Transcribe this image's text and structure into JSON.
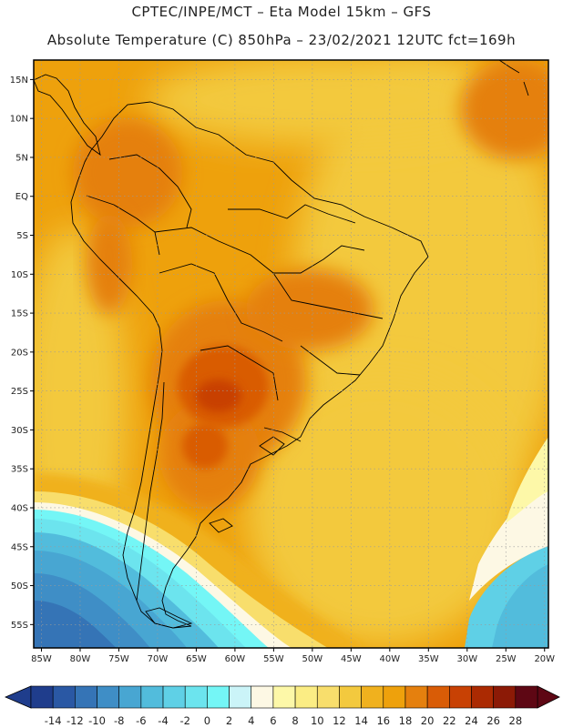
{
  "header": {
    "line1": "CPTEC/INPE/MCT –  Eta Model 15km – GFS",
    "line2": "Absolute Temperature (C) 850hPa – 23/02/2021 12UTC fct=169h"
  },
  "axes": {
    "lat_labels": [
      "15N",
      "10N",
      "5N",
      "EQ",
      "5S",
      "10S",
      "15S",
      "20S",
      "25S",
      "30S",
      "35S",
      "40S",
      "45S",
      "50S",
      "55S"
    ],
    "lat_values": [
      15,
      10,
      5,
      0,
      -5,
      -10,
      -15,
      -20,
      -25,
      -30,
      -35,
      -40,
      -45,
      -50,
      -55
    ],
    "lon_labels": [
      "85W",
      "80W",
      "75W",
      "70W",
      "65W",
      "60W",
      "55W",
      "50W",
      "45W",
      "40W",
      "35W",
      "30W",
      "25W",
      "20W"
    ],
    "lon_values": [
      -85,
      -80,
      -75,
      -70,
      -65,
      -60,
      -55,
      -50,
      -45,
      -40,
      -35,
      -30,
      -25,
      -20
    ],
    "lat_range": [
      -58,
      17.5
    ],
    "lon_range": [
      -86,
      -19.5
    ],
    "grid": "dotted"
  },
  "colorbar": {
    "labels": [
      "-14",
      "-12",
      "-10",
      "-8",
      "-6",
      "-4",
      "-2",
      "0",
      "2",
      "4",
      "6",
      "8",
      "10",
      "12",
      "14",
      "16",
      "18",
      "20",
      "22",
      "24",
      "26",
      "28"
    ],
    "colors": [
      "#1f3d8c",
      "#2a58a4",
      "#3574b6",
      "#3f8ec6",
      "#48a6d2",
      "#52bcdc",
      "#5fd0e6",
      "#6ce4ee",
      "#74f6f6",
      "#cbf4f8",
      "#fdf8e4",
      "#fdf8a8",
      "#fbed84",
      "#f8de6c",
      "#f3c93e",
      "#f0b11e",
      "#eea10c",
      "#e5800e",
      "#d95c06",
      "#c84104",
      "#ab2a02",
      "#8c1a06",
      "#5e0714"
    ]
  }
}
